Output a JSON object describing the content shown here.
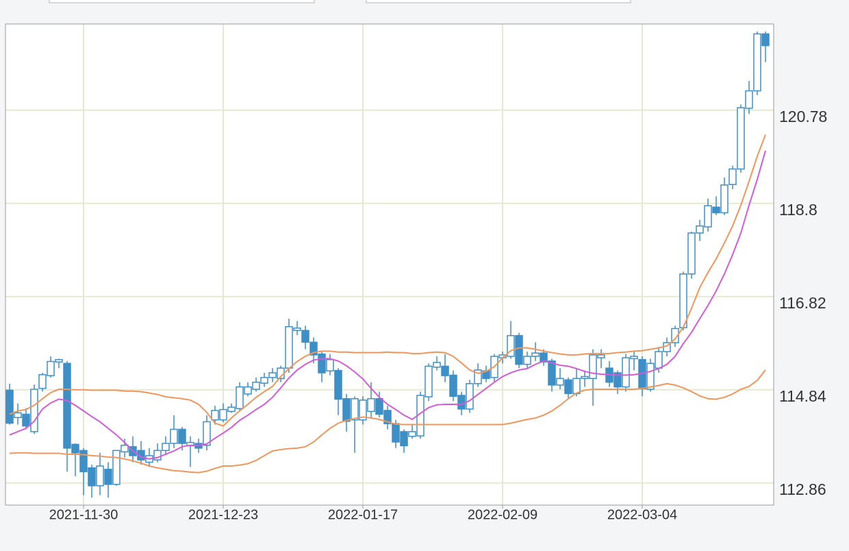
{
  "chart_data": {
    "type": "candlestick",
    "categories": [
      null,
      null,
      null,
      null,
      null,
      null,
      null,
      null,
      null,
      "2021-11-30",
      null,
      null,
      null,
      null,
      null,
      null,
      null,
      null,
      null,
      null,
      null,
      null,
      null,
      null,
      null,
      null,
      "2021-12-23",
      null,
      null,
      null,
      null,
      null,
      null,
      null,
      null,
      null,
      null,
      null,
      null,
      null,
      null,
      null,
      null,
      "2022-01-17",
      null,
      null,
      null,
      null,
      null,
      null,
      null,
      null,
      null,
      null,
      null,
      null,
      null,
      null,
      null,
      null,
      "2022-02-09",
      null,
      null,
      null,
      null,
      null,
      null,
      null,
      null,
      null,
      null,
      null,
      null,
      null,
      null,
      null,
      null,
      "2022-03-04",
      null,
      null,
      null,
      null,
      null,
      null,
      null,
      null,
      null,
      null,
      null,
      null,
      null,
      null,
      null
    ],
    "open": [
      114.83,
      114.25,
      114.32,
      113.95,
      114.87,
      115.14,
      115.43,
      115.4,
      113.68,
      113.55,
      113.18,
      112.8,
      113.15,
      112.83,
      113.52,
      113.63,
      113.55,
      113.3,
      113.35,
      113.55,
      113.7,
      114.0,
      113.65,
      113.7,
      113.66,
      114.2,
      114.2,
      114.38,
      114.44,
      114.75,
      114.85,
      114.98,
      115.1,
      115.08,
      115.3,
      116.1,
      116.1,
      115.85,
      115.6,
      115.24,
      115.25,
      114.65,
      114.2,
      114.2,
      114.38,
      114.65,
      114.4,
      114.12,
      113.95,
      113.85,
      113.86,
      114.69,
      115.32,
      115.34,
      115.15,
      114.72,
      114.43,
      114.97,
      115.24,
      115.1,
      115.52,
      115.55,
      115.99,
      115.38,
      115.55,
      115.62,
      115.45,
      114.94,
      115.05,
      114.76,
      115.08,
      115.08,
      115.52,
      115.3,
      115.2,
      114.9,
      115.5,
      115.48,
      114.85,
      115.3,
      115.65,
      115.84,
      116.16,
      117.3,
      118.17,
      118.3,
      118.72,
      118.6,
      119.2,
      119.53,
      120.82,
      121.19,
      122.4
    ],
    "high": [
      114.97,
      114.55,
      114.45,
      114.95,
      115.2,
      115.55,
      115.5,
      115.45,
      113.7,
      113.6,
      113.25,
      113.5,
      113.3,
      113.55,
      113.8,
      113.85,
      113.75,
      113.6,
      113.7,
      113.85,
      114.3,
      114.05,
      113.85,
      113.8,
      114.3,
      114.5,
      114.55,
      114.55,
      115.0,
      115.0,
      115.1,
      115.2,
      115.3,
      115.35,
      116.35,
      116.3,
      116.2,
      115.95,
      115.65,
      115.6,
      115.3,
      114.75,
      114.7,
      114.7,
      115.0,
      114.8,
      114.5,
      114.2,
      114.0,
      114.1,
      114.8,
      115.4,
      115.55,
      115.6,
      115.25,
      114.8,
      115.05,
      115.4,
      115.35,
      115.6,
      115.65,
      116.3,
      116.05,
      115.65,
      115.85,
      115.7,
      115.5,
      115.3,
      115.1,
      115.3,
      115.25,
      115.7,
      115.7,
      115.45,
      115.25,
      115.6,
      115.65,
      115.55,
      115.5,
      115.75,
      115.95,
      116.2,
      117.35,
      118.2,
      118.45,
      118.9,
      118.95,
      119.35,
      119.6,
      120.9,
      121.4,
      122.45,
      122.45
    ],
    "low": [
      114.1,
      114.1,
      114.0,
      113.9,
      114.8,
      115.1,
      115.3,
      113.1,
      113.0,
      112.6,
      112.55,
      112.6,
      112.55,
      112.8,
      113.4,
      113.3,
      113.25,
      113.2,
      113.3,
      113.45,
      113.6,
      113.55,
      113.2,
      113.5,
      113.55,
      114.1,
      114.15,
      114.35,
      114.4,
      114.7,
      114.8,
      114.9,
      115.0,
      115.0,
      115.2,
      116.0,
      115.7,
      115.4,
      115.0,
      115.15,
      114.3,
      113.95,
      113.5,
      114.1,
      114.25,
      114.25,
      114.0,
      113.6,
      113.5,
      113.8,
      113.8,
      114.6,
      115.25,
      115.0,
      114.6,
      114.3,
      114.35,
      114.9,
      115.0,
      115.0,
      115.4,
      115.5,
      115.3,
      115.3,
      115.45,
      115.35,
      114.8,
      114.85,
      114.65,
      114.7,
      114.9,
      114.5,
      115.3,
      114.9,
      114.75,
      114.8,
      115.25,
      114.7,
      114.8,
      115.2,
      115.55,
      115.75,
      116.1,
      117.2,
      118.0,
      118.2,
      118.55,
      118.55,
      119.1,
      119.45,
      120.7,
      121.1,
      121.8
    ],
    "close": [
      114.13,
      114.35,
      114.07,
      114.85,
      115.16,
      115.44,
      115.48,
      113.6,
      113.5,
      113.1,
      112.8,
      113.22,
      112.83,
      113.55,
      113.66,
      113.44,
      113.35,
      113.44,
      113.55,
      113.7,
      114.0,
      113.7,
      113.72,
      113.6,
      114.16,
      114.4,
      114.42,
      114.47,
      114.9,
      114.9,
      115.0,
      115.1,
      115.2,
      115.3,
      116.18,
      116.15,
      115.85,
      115.58,
      115.2,
      115.48,
      114.64,
      114.17,
      114.65,
      114.62,
      114.65,
      114.32,
      114.12,
      113.73,
      113.65,
      113.95,
      114.72,
      115.34,
      115.42,
      115.14,
      114.7,
      114.43,
      114.97,
      115.26,
      115.08,
      115.55,
      115.58,
      115.99,
      115.38,
      115.55,
      115.62,
      115.43,
      114.94,
      115.08,
      114.76,
      115.08,
      115.12,
      115.58,
      115.58,
      115.0,
      114.9,
      115.52,
      115.55,
      114.86,
      115.4,
      115.65,
      115.84,
      116.14,
      117.3,
      118.17,
      118.32,
      118.75,
      118.6,
      119.19,
      119.53,
      120.83,
      121.19,
      122.4,
      122.15
    ],
    "candle_color": "#3d8fc6",
    "lines": [
      {
        "color": "#f0965a",
        "values": [
          114.32,
          114.39,
          114.42,
          114.51,
          114.65,
          114.78,
          114.85,
          114.85,
          114.84,
          114.84,
          114.83,
          114.83,
          114.83,
          114.83,
          114.81,
          114.81,
          114.8,
          114.77,
          114.74,
          114.69,
          114.67,
          114.65,
          114.62,
          114.53,
          114.36,
          114.13,
          114.07,
          114.24,
          114.39,
          114.53,
          114.68,
          114.8,
          114.91,
          115.12,
          115.29,
          115.44,
          115.55,
          115.63,
          115.66,
          115.66,
          115.64,
          115.64,
          115.63,
          115.63,
          115.63,
          115.63,
          115.64,
          115.63,
          115.63,
          115.61,
          115.61,
          115.63,
          115.64,
          115.63,
          115.55,
          115.41,
          115.26,
          115.19,
          115.23,
          115.33,
          115.52,
          115.67,
          115.73,
          115.73,
          115.7,
          115.66,
          115.63,
          115.6,
          115.58,
          115.58,
          115.6,
          115.61,
          115.61,
          115.61,
          115.63,
          115.64,
          115.66,
          115.67,
          115.7,
          115.73,
          115.77,
          115.92,
          116.17,
          116.57,
          117.01,
          117.33,
          117.62,
          117.96,
          118.32,
          118.76,
          119.27,
          119.8,
          120.26
        ]
      },
      {
        "color": "#d45bd8",
        "values": [
          113.88,
          113.95,
          114.02,
          114.17,
          114.43,
          114.56,
          114.64,
          114.61,
          114.51,
          114.39,
          114.27,
          114.16,
          114.02,
          113.88,
          113.72,
          113.54,
          113.41,
          113.37,
          113.4,
          113.47,
          113.54,
          113.63,
          113.66,
          113.66,
          113.69,
          113.81,
          113.92,
          114.04,
          114.19,
          114.3,
          114.42,
          114.53,
          114.68,
          114.88,
          115.09,
          115.26,
          115.38,
          115.47,
          115.5,
          115.5,
          115.45,
          115.35,
          115.22,
          115.07,
          114.87,
          114.68,
          114.53,
          114.42,
          114.3,
          114.21,
          114.34,
          114.46,
          114.52,
          114.53,
          114.53,
          114.53,
          114.61,
          114.74,
          114.87,
          115.0,
          115.12,
          115.2,
          115.26,
          115.29,
          115.38,
          115.45,
          115.41,
          115.36,
          115.34,
          115.29,
          115.23,
          115.19,
          115.17,
          115.16,
          115.15,
          115.15,
          115.16,
          115.19,
          115.23,
          115.29,
          115.38,
          115.55,
          115.82,
          116.06,
          116.35,
          116.63,
          116.94,
          117.3,
          117.71,
          118.17,
          118.76,
          119.31,
          119.92
        ]
      },
      {
        "color": "#f0965a",
        "values": [
          113.49,
          113.5,
          113.5,
          113.49,
          113.49,
          113.49,
          113.49,
          113.47,
          113.47,
          113.46,
          113.44,
          113.43,
          113.41,
          113.4,
          113.37,
          113.33,
          113.28,
          113.22,
          113.18,
          113.15,
          113.12,
          113.11,
          113.09,
          113.08,
          113.11,
          113.17,
          113.22,
          113.22,
          113.24,
          113.27,
          113.34,
          113.44,
          113.54,
          113.57,
          113.59,
          113.6,
          113.63,
          113.73,
          113.88,
          114.02,
          114.13,
          114.19,
          114.23,
          114.26,
          114.24,
          114.21,
          114.16,
          114.11,
          114.1,
          114.1,
          114.1,
          114.1,
          114.1,
          114.1,
          114.1,
          114.1,
          114.1,
          114.1,
          114.1,
          114.1,
          114.1,
          114.13,
          114.17,
          114.21,
          114.24,
          114.3,
          114.39,
          114.51,
          114.65,
          114.77,
          114.83,
          114.85,
          114.85,
          114.85,
          114.85,
          114.85,
          114.85,
          114.87,
          114.9,
          114.93,
          114.97,
          114.94,
          114.88,
          114.8,
          114.71,
          114.65,
          114.64,
          114.68,
          114.75,
          114.85,
          114.91,
          115.04,
          115.26
        ]
      }
    ],
    "ylim": [
      112.39,
      122.61
    ],
    "yticks": [
      112.86,
      114.84,
      116.82,
      118.8,
      120.78
    ],
    "grid": true,
    "grid_color": "#e6e9d2"
  }
}
